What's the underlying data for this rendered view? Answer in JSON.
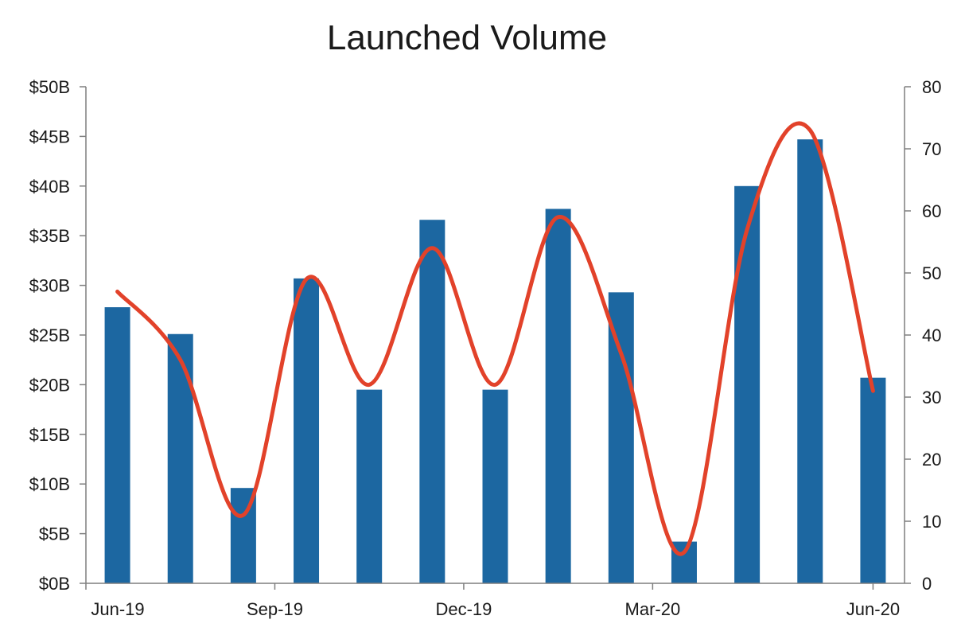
{
  "chart_data": {
    "type": "bar",
    "title": "Launched Volume",
    "x_tick_labels": [
      "Jun-19",
      "Sep-19",
      "Dec-19",
      "Mar-20",
      "Jun-20"
    ],
    "x_tick_label_positions": [
      0,
      3,
      6,
      9,
      12
    ],
    "left_axis": {
      "ticks": [
        "$0B",
        "$5B",
        "$10B",
        "$15B",
        "$20B",
        "$25B",
        "$30B",
        "$35B",
        "$40B",
        "$45B",
        "$50B"
      ],
      "ylim": [
        0,
        50
      ],
      "unit": "$B"
    },
    "right_axis": {
      "ticks": [
        "0",
        "10",
        "20",
        "30",
        "40",
        "50",
        "60",
        "70",
        "80"
      ],
      "ylim": [
        0,
        80
      ]
    },
    "grid": false,
    "legend": "none",
    "series": [
      {
        "type": "bar",
        "axis": "left",
        "color": "#1c67a1",
        "values": [
          27.8,
          25.1,
          9.6,
          30.7,
          19.5,
          36.6,
          19.5,
          37.7,
          29.3,
          4.2,
          40.0,
          44.7,
          20.7
        ]
      },
      {
        "type": "line",
        "axis": "right",
        "smooth": true,
        "color": "#e2422a",
        "values": [
          47,
          36,
          11,
          49,
          32,
          54,
          32,
          59,
          37,
          5,
          57,
          73,
          31
        ]
      }
    ]
  }
}
